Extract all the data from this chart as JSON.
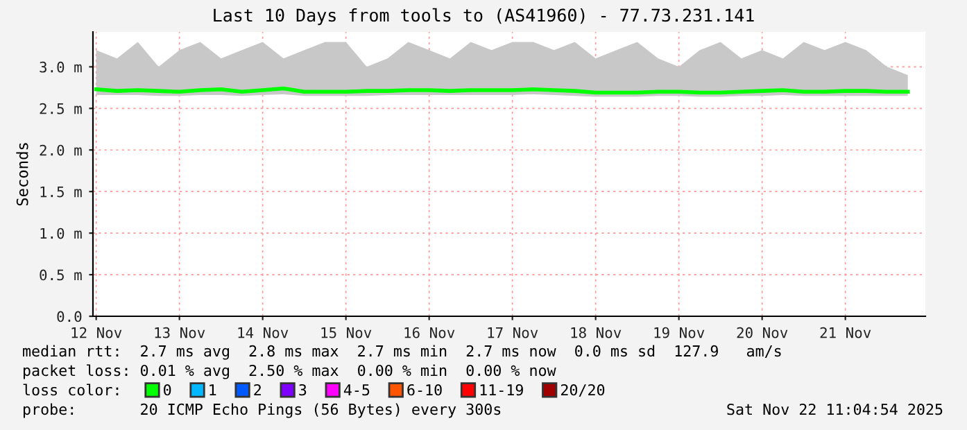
{
  "chart_data": {
    "type": "line",
    "title": "Last 10 Days from tools to (AS41960) - 77.73.231.141",
    "ylabel": "Seconds",
    "x": [
      "2025-11-12T12:00",
      "2025-11-12T18:00",
      "2025-11-13T00:00",
      "2025-11-13T06:00",
      "2025-11-13T12:00",
      "2025-11-13T18:00",
      "2025-11-14T00:00",
      "2025-11-14T06:00",
      "2025-11-14T12:00",
      "2025-11-14T18:00",
      "2025-11-15T00:00",
      "2025-11-15T06:00",
      "2025-11-15T12:00",
      "2025-11-15T18:00",
      "2025-11-16T00:00",
      "2025-11-16T06:00",
      "2025-11-16T12:00",
      "2025-11-16T18:00",
      "2025-11-17T00:00",
      "2025-11-17T06:00",
      "2025-11-17T12:00",
      "2025-11-17T18:00",
      "2025-11-18T00:00",
      "2025-11-18T06:00",
      "2025-11-18T12:00",
      "2025-11-18T18:00",
      "2025-11-19T00:00",
      "2025-11-19T06:00",
      "2025-11-19T12:00",
      "2025-11-19T18:00",
      "2025-11-20T00:00",
      "2025-11-20T06:00",
      "2025-11-20T12:00",
      "2025-11-20T18:00",
      "2025-11-21T00:00",
      "2025-11-21T06:00",
      "2025-11-21T12:00",
      "2025-11-21T18:00",
      "2025-11-22T00:00",
      "2025-11-22T06:00"
    ],
    "series": [
      {
        "name": "0",
        "color": "#00ff00",
        "values": [
          2.73,
          2.71,
          2.72,
          2.71,
          2.7,
          2.72,
          2.73,
          2.7,
          2.72,
          2.74,
          2.7,
          2.7,
          2.7,
          2.71,
          2.71,
          2.72,
          2.72,
          2.71,
          2.72,
          2.72,
          2.72,
          2.73,
          2.72,
          2.71,
          2.69,
          2.69,
          2.69,
          2.7,
          2.7,
          2.69,
          2.69,
          2.7,
          2.71,
          2.72,
          2.7,
          2.7,
          2.71,
          2.71,
          2.7,
          2.7
        ],
        "lower": [
          2.66,
          2.66,
          2.66,
          2.65,
          2.65,
          2.66,
          2.66,
          2.65,
          2.66,
          2.67,
          2.65,
          2.65,
          2.65,
          2.65,
          2.66,
          2.66,
          2.66,
          2.66,
          2.66,
          2.66,
          2.66,
          2.67,
          2.66,
          2.65,
          2.64,
          2.64,
          2.64,
          2.65,
          2.65,
          2.64,
          2.64,
          2.65,
          2.65,
          2.66,
          2.65,
          2.65,
          2.65,
          2.65,
          2.65,
          2.65
        ],
        "upper": [
          3.2,
          3.1,
          3.3,
          3.0,
          3.2,
          3.3,
          3.1,
          3.2,
          3.3,
          3.1,
          3.2,
          3.3,
          3.3,
          3.0,
          3.1,
          3.3,
          3.2,
          3.1,
          3.3,
          3.2,
          3.3,
          3.3,
          3.2,
          3.3,
          3.1,
          3.2,
          3.3,
          3.1,
          3.0,
          3.2,
          3.3,
          3.1,
          3.2,
          3.1,
          3.3,
          3.2,
          3.3,
          3.2,
          3.0,
          2.9
        ]
      },
      {
        "name": "1",
        "color": "#00b8ff",
        "values": [
          null,
          null,
          null,
          null,
          null,
          null,
          null,
          null,
          null,
          null,
          null,
          null,
          null,
          null,
          null,
          null,
          null,
          null,
          null,
          null,
          null,
          null,
          null,
          null,
          null,
          null,
          null,
          null,
          null,
          null,
          null,
          null,
          null,
          null,
          null,
          null,
          null,
          null,
          null,
          null
        ]
      },
      {
        "name": "2",
        "color": "#0059ff",
        "values": [
          null,
          null,
          null,
          null,
          null,
          null,
          null,
          null,
          null,
          null,
          null,
          null,
          null,
          null,
          null,
          null,
          null,
          null,
          null,
          null,
          null,
          null,
          null,
          null,
          null,
          null,
          null,
          null,
          null,
          null,
          null,
          null,
          null,
          null,
          null,
          null,
          null,
          null,
          null,
          null
        ]
      },
      {
        "name": "3",
        "color": "#7e00ff",
        "values": [
          null,
          null,
          null,
          null,
          null,
          null,
          null,
          null,
          null,
          null,
          null,
          null,
          null,
          null,
          null,
          null,
          null,
          null,
          null,
          null,
          null,
          null,
          null,
          null,
          null,
          null,
          null,
          null,
          null,
          null,
          null,
          null,
          null,
          null,
          null,
          null,
          null,
          null,
          null,
          null
        ]
      },
      {
        "name": "4-5",
        "color": "#ff00ff",
        "values": [
          null,
          null,
          null,
          null,
          null,
          null,
          null,
          null,
          null,
          null,
          null,
          null,
          null,
          null,
          null,
          null,
          null,
          null,
          null,
          null,
          null,
          null,
          null,
          null,
          null,
          null,
          null,
          null,
          null,
          null,
          null,
          null,
          null,
          null,
          null,
          null,
          null,
          null,
          null,
          null
        ]
      },
      {
        "name": "6-10",
        "color": "#ff5500",
        "values": [
          null,
          null,
          null,
          null,
          null,
          null,
          null,
          null,
          null,
          null,
          null,
          null,
          null,
          null,
          null,
          null,
          null,
          null,
          null,
          null,
          null,
          null,
          null,
          null,
          null,
          null,
          null,
          null,
          null,
          null,
          null,
          null,
          null,
          null,
          null,
          null,
          null,
          null,
          null,
          null
        ]
      },
      {
        "name": "11-19",
        "color": "#ff0000",
        "values": [
          null,
          null,
          null,
          null,
          null,
          null,
          null,
          null,
          null,
          null,
          null,
          null,
          null,
          null,
          null,
          null,
          null,
          null,
          null,
          null,
          null,
          null,
          null,
          null,
          null,
          null,
          null,
          null,
          null,
          null,
          null,
          null,
          null,
          null,
          null,
          null,
          null,
          null,
          null,
          null
        ]
      },
      {
        "name": "20/20",
        "color": "#a10000",
        "values": [
          null,
          null,
          null,
          null,
          null,
          null,
          null,
          null,
          null,
          null,
          null,
          null,
          null,
          null,
          null,
          null,
          null,
          null,
          null,
          null,
          null,
          null,
          null,
          null,
          null,
          null,
          null,
          null,
          null,
          null,
          null,
          null,
          null,
          null,
          null,
          null,
          null,
          null,
          null,
          null
        ]
      }
    ],
    "legend_title": "loss color:",
    "legend": "bottom",
    "xlim": [
      "2025-11-12T11:04",
      "2025-11-22T11:04"
    ],
    "xticks": [
      {
        "value": "2025-11-12T12:00",
        "label": "12 Nov"
      },
      {
        "value": "2025-11-13T12:00",
        "label": "13 Nov"
      },
      {
        "value": "2025-11-14T12:00",
        "label": "14 Nov"
      },
      {
        "value": "2025-11-15T12:00",
        "label": "15 Nov"
      },
      {
        "value": "2025-11-16T12:00",
        "label": "16 Nov"
      },
      {
        "value": "2025-11-17T12:00",
        "label": "17 Nov"
      },
      {
        "value": "2025-11-18T12:00",
        "label": "18 Nov"
      },
      {
        "value": "2025-11-19T12:00",
        "label": "19 Nov"
      },
      {
        "value": "2025-11-20T12:00",
        "label": "20 Nov"
      },
      {
        "value": "2025-11-21T12:00",
        "label": "21 Nov"
      }
    ],
    "ylim": [
      0,
      3.42
    ],
    "yticks": [
      {
        "value": 0,
        "label": "0.0"
      },
      {
        "value": 0.5,
        "label": "0.5 m"
      },
      {
        "value": 1.0,
        "label": "1.0 m"
      },
      {
        "value": 1.5,
        "label": "1.5 m"
      },
      {
        "value": 2.0,
        "label": "2.0 m"
      },
      {
        "value": 2.5,
        "label": "2.5 m"
      },
      {
        "value": 3.0,
        "label": "3.0 m"
      }
    ],
    "grid": true,
    "annotations": [
      "median rtt:  2.7 ms avg  2.8 ms max  2.7 ms min  2.7 ms now  0.0 ms sd  127.9   am/s",
      "packet loss: 0.01 % avg  2.50 % max  0.00 % min  0.00 % now",
      "probe:       20 ICMP Echo Pings (56 Bytes) every 300s",
      "Sat Nov 22 11:04:54 2025"
    ]
  }
}
